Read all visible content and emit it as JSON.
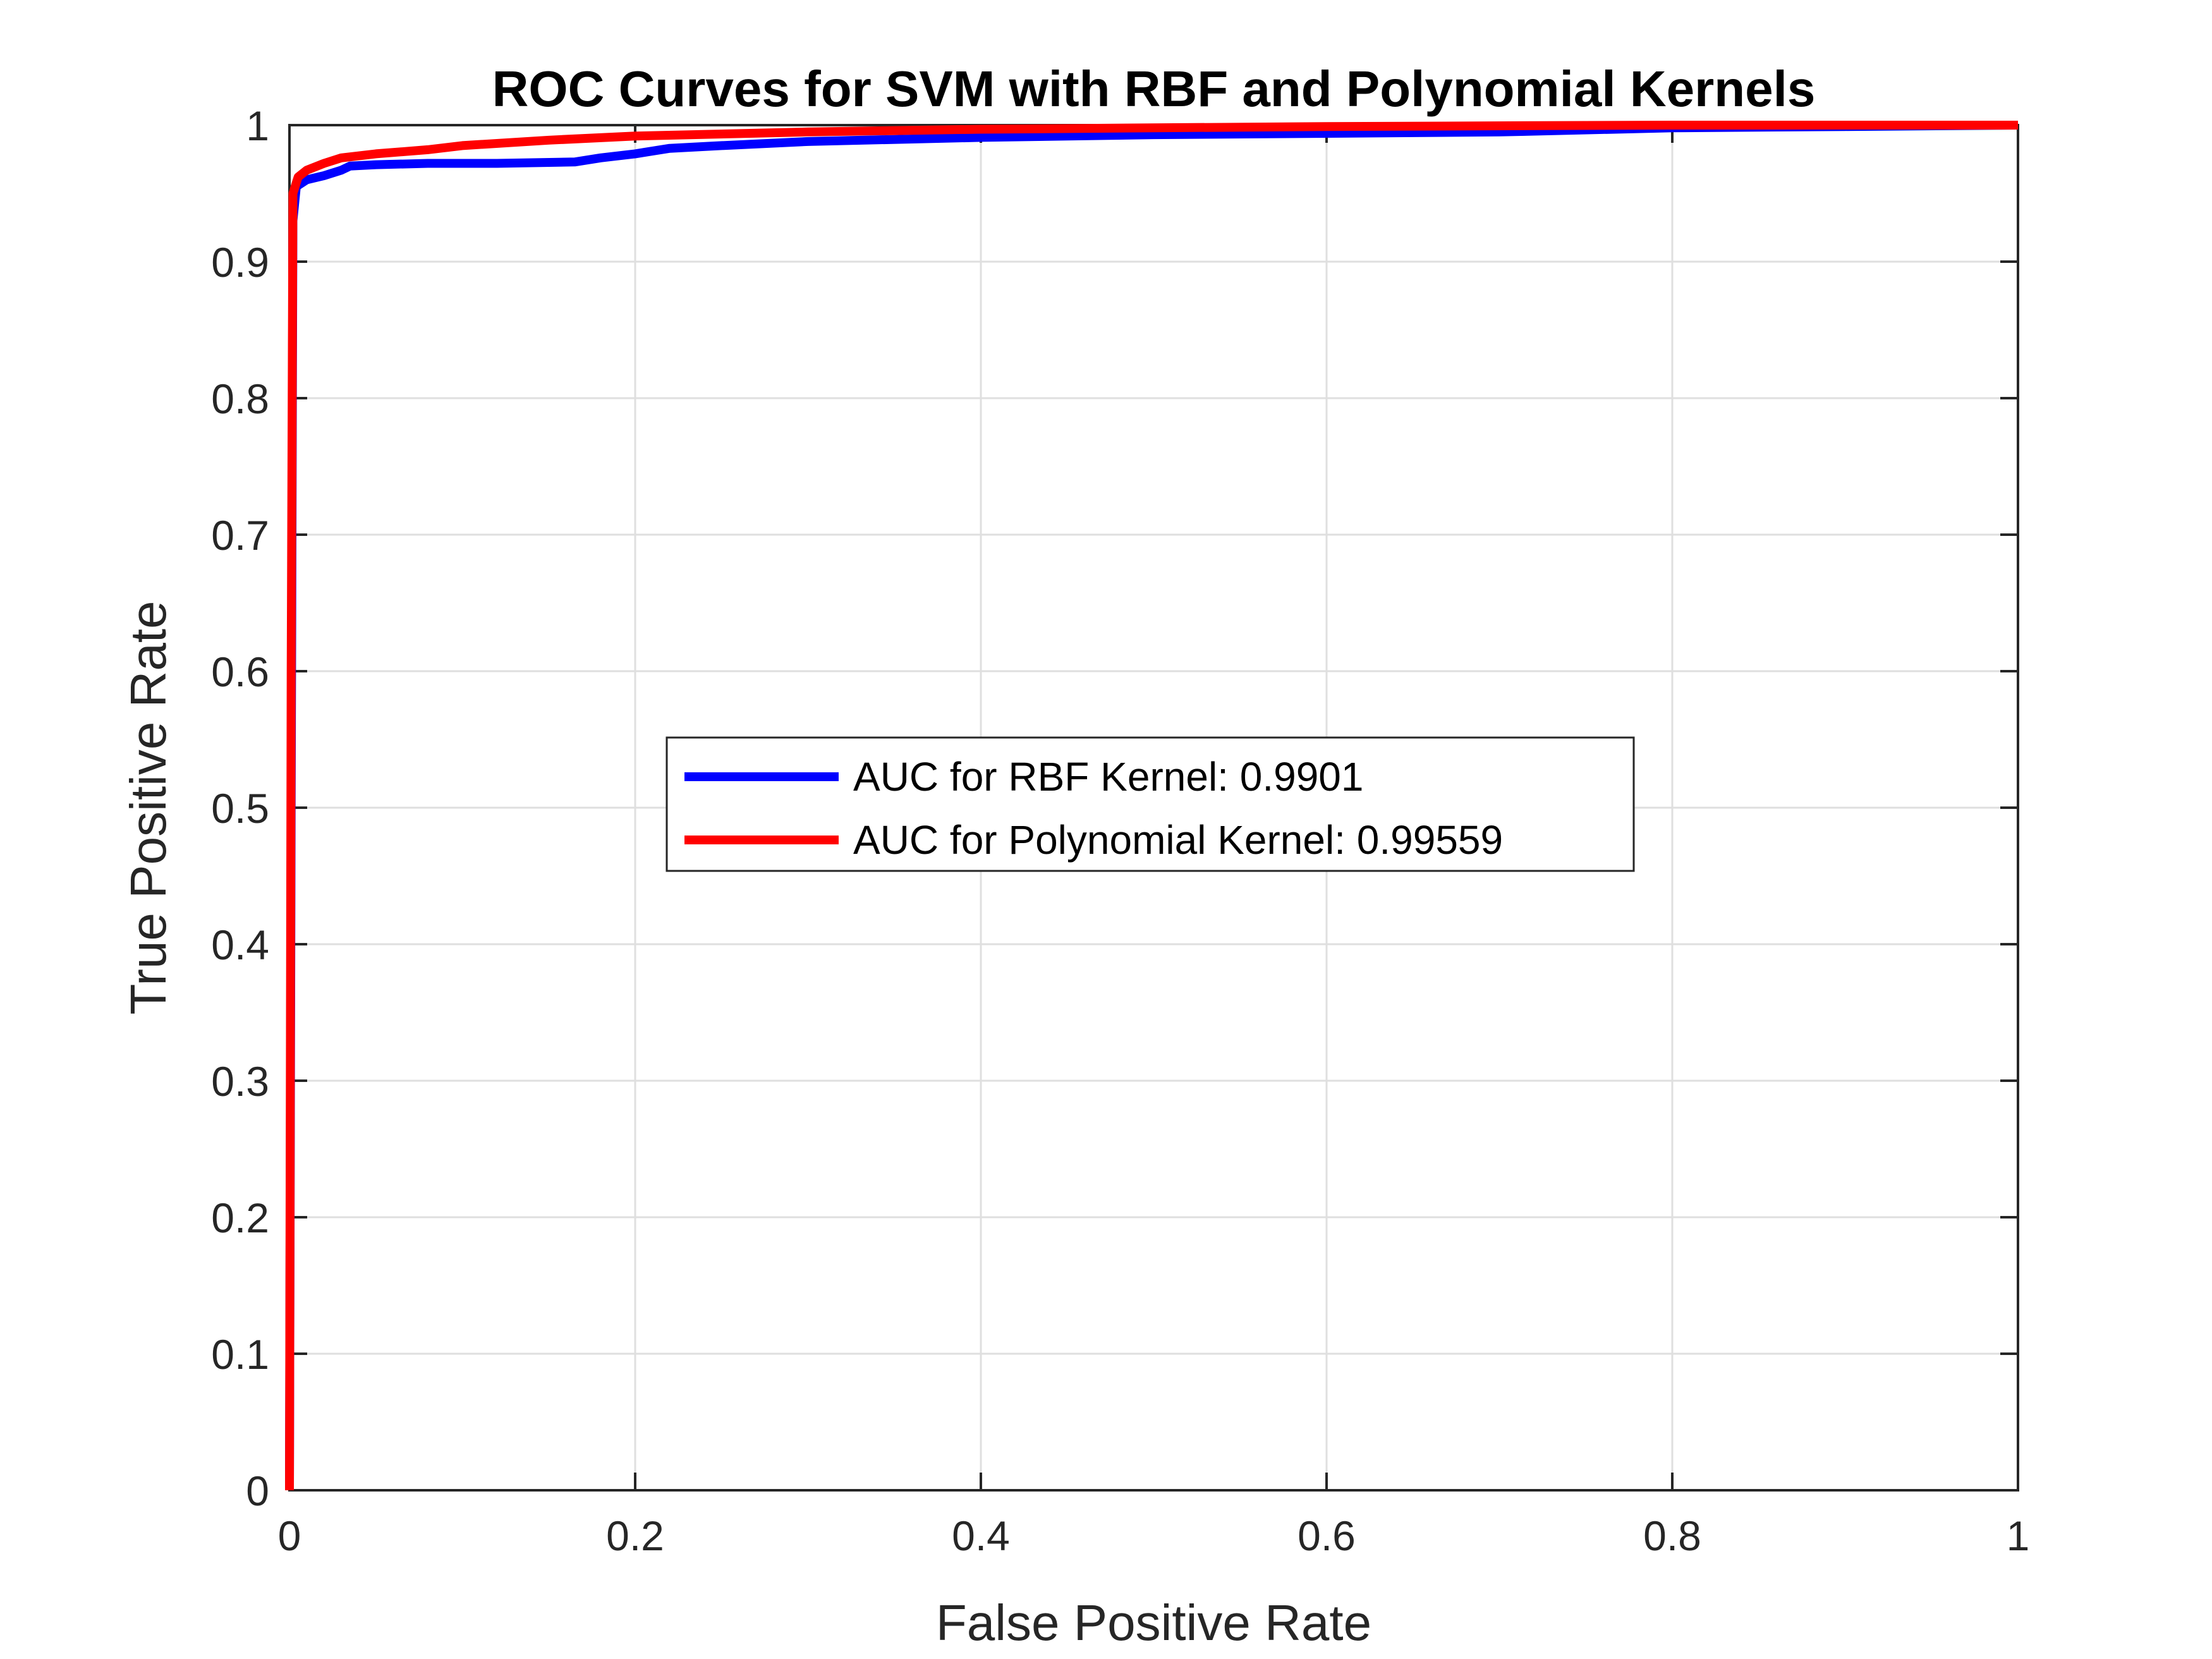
{
  "chart_data": {
    "type": "line",
    "title": "ROC Curves for SVM with RBF and Polynomial Kernels",
    "xlabel": "False Positive Rate",
    "ylabel": "True Positive Rate",
    "xlim": [
      0,
      1
    ],
    "ylim": [
      0,
      1
    ],
    "xticks": [
      "0",
      "0.2",
      "0.4",
      "0.6",
      "0.8",
      "1"
    ],
    "yticks": [
      "0",
      "0.1",
      "0.2",
      "0.3",
      "0.4",
      "0.5",
      "0.6",
      "0.7",
      "0.8",
      "0.9",
      "1"
    ],
    "grid": true,
    "legend_position": "center",
    "series": [
      {
        "name": "AUC for RBF Kernel: 0.9901",
        "color": "#0000ff",
        "points": [
          [
            0,
            0
          ],
          [
            0.001,
            0.5
          ],
          [
            0.002,
            0.93
          ],
          [
            0.004,
            0.955
          ],
          [
            0.01,
            0.96
          ],
          [
            0.02,
            0.963
          ],
          [
            0.03,
            0.967
          ],
          [
            0.035,
            0.97
          ],
          [
            0.05,
            0.971
          ],
          [
            0.08,
            0.972
          ],
          [
            0.12,
            0.972
          ],
          [
            0.165,
            0.973
          ],
          [
            0.18,
            0.976
          ],
          [
            0.2,
            0.979
          ],
          [
            0.22,
            0.983
          ],
          [
            0.25,
            0.985
          ],
          [
            0.3,
            0.988
          ],
          [
            0.4,
            0.991
          ],
          [
            0.5,
            0.993
          ],
          [
            0.6,
            0.994
          ],
          [
            0.7,
            0.995
          ],
          [
            0.8,
            0.998
          ],
          [
            0.9,
            0.999
          ],
          [
            1,
            1
          ]
        ]
      },
      {
        "name": "AUC for Polynomial Kernel: 0.99559",
        "color": "#ff0000",
        "points": [
          [
            0,
            0
          ],
          [
            0.001,
            0.6
          ],
          [
            0.002,
            0.95
          ],
          [
            0.005,
            0.962
          ],
          [
            0.01,
            0.967
          ],
          [
            0.02,
            0.972
          ],
          [
            0.03,
            0.976
          ],
          [
            0.05,
            0.979
          ],
          [
            0.08,
            0.982
          ],
          [
            0.1,
            0.985
          ],
          [
            0.15,
            0.989
          ],
          [
            0.2,
            0.992
          ],
          [
            0.3,
            0.995
          ],
          [
            0.4,
            0.997
          ],
          [
            0.5,
            0.998
          ],
          [
            0.6,
            0.999
          ],
          [
            0.8,
            1
          ],
          [
            1,
            1
          ]
        ]
      }
    ]
  }
}
